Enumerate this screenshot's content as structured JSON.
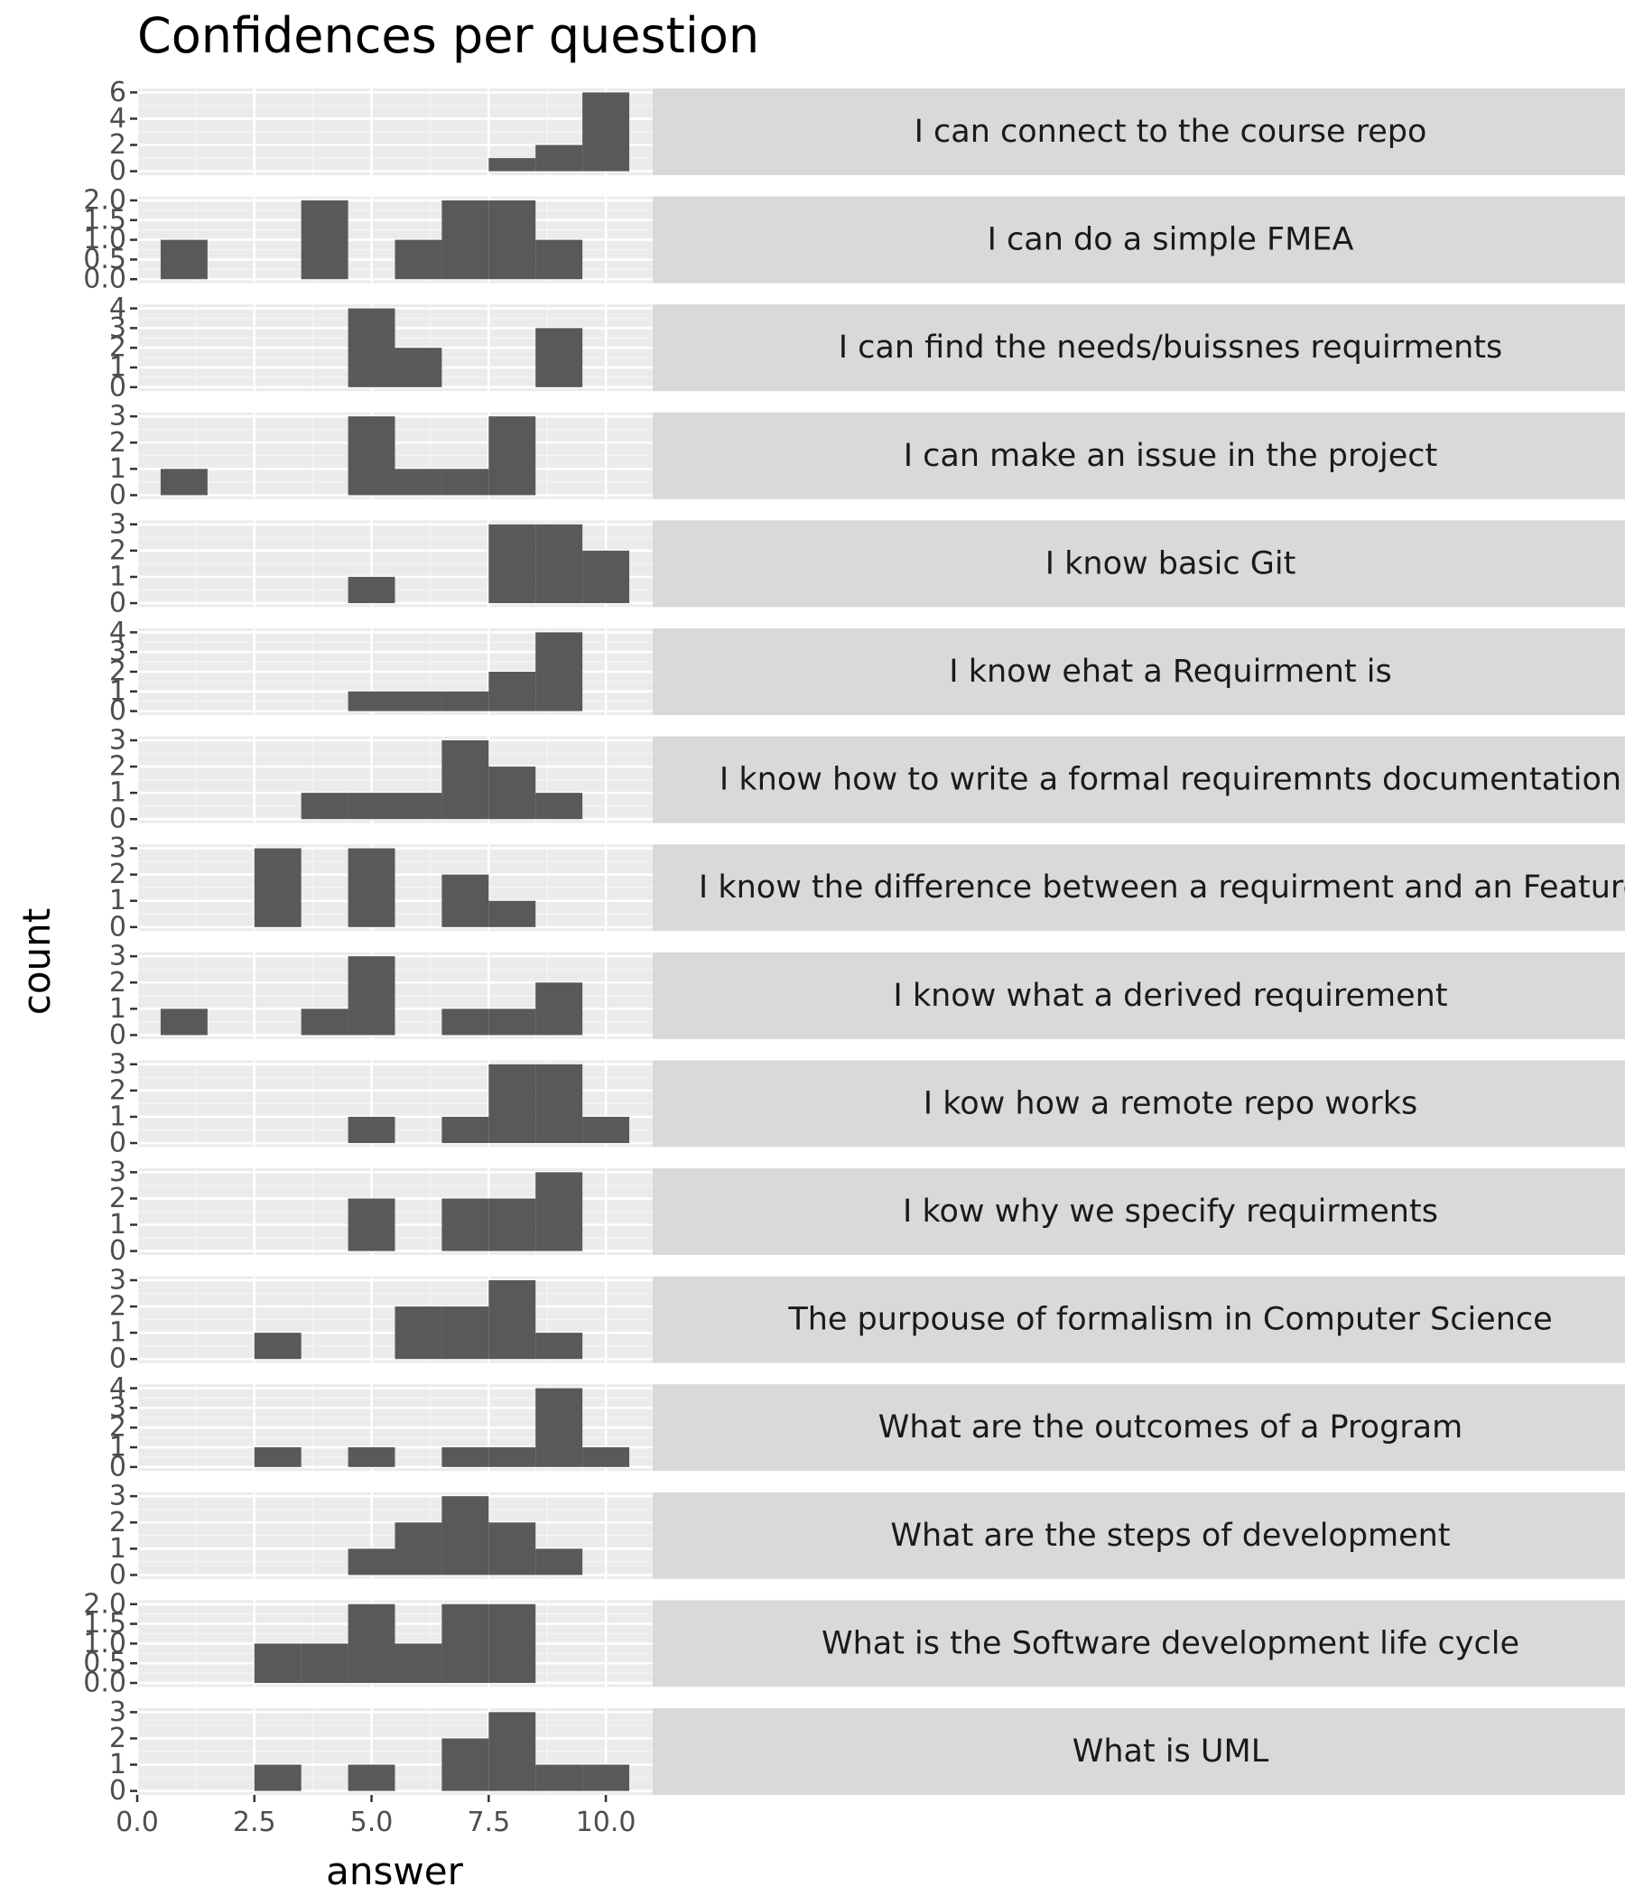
{
  "chart_data": {
    "type": "bar",
    "title": "Confidences per question",
    "xlabel": "answer",
    "ylabel": "count",
    "xlim": [
      0,
      11
    ],
    "x_ticks": [
      0,
      2.5,
      5,
      7.5,
      10
    ],
    "x_tick_labels": [
      "0.0",
      "2.5",
      "5.0",
      "7.5",
      "10.0"
    ],
    "bin_width": 1,
    "bins": [
      1,
      2,
      3,
      4,
      5,
      6,
      7,
      8,
      9,
      10
    ],
    "colors": {
      "bar": "#595959",
      "panel_bg": "#ebebeb",
      "grid_major": "#ffffff",
      "strip_bg": "#d9d9d9",
      "text": "#1a1a1a",
      "tick_text": "#4d4d4d"
    },
    "panels": [
      {
        "label": "I can connect to the course repo",
        "values": [
          0,
          0,
          0,
          0,
          0,
          0,
          0,
          1,
          2,
          6
        ],
        "ylim": [
          0,
          6
        ],
        "y_ticks": [
          0,
          2,
          4,
          6
        ],
        "y_tick_labels": [
          "0",
          "2",
          "4",
          "6"
        ]
      },
      {
        "label": "I can do a simple FMEA",
        "values": [
          1,
          0,
          0,
          2,
          0,
          1,
          2,
          2,
          1,
          0
        ],
        "ylim": [
          0,
          2
        ],
        "y_ticks": [
          0,
          0.5,
          1,
          1.5,
          2
        ],
        "y_tick_labels": [
          "0.0",
          "0.5",
          "1.0",
          "1.5",
          "2.0"
        ]
      },
      {
        "label": "I can find the needs/buissnes requirments",
        "values": [
          0,
          0,
          0,
          0,
          4,
          2,
          0,
          0,
          3,
          0
        ],
        "ylim": [
          0,
          4
        ],
        "y_ticks": [
          0,
          1,
          2,
          3,
          4
        ],
        "y_tick_labels": [
          "0",
          "1",
          "2",
          "3",
          "4"
        ]
      },
      {
        "label": "I can make an issue in the project",
        "values": [
          1,
          0,
          0,
          0,
          3,
          1,
          1,
          3,
          0,
          0
        ],
        "ylim": [
          0,
          3
        ],
        "y_ticks": [
          0,
          1,
          2,
          3
        ],
        "y_tick_labels": [
          "0",
          "1",
          "2",
          "3"
        ]
      },
      {
        "label": "I know basic Git",
        "values": [
          0,
          0,
          0,
          0,
          1,
          0,
          0,
          3,
          3,
          2
        ],
        "ylim": [
          0,
          3
        ],
        "y_ticks": [
          0,
          1,
          2,
          3
        ],
        "y_tick_labels": [
          "0",
          "1",
          "2",
          "3"
        ]
      },
      {
        "label": "I know ehat a Requirment is",
        "values": [
          0,
          0,
          0,
          0,
          1,
          1,
          1,
          2,
          4,
          0
        ],
        "ylim": [
          0,
          4
        ],
        "y_ticks": [
          0,
          1,
          2,
          3,
          4
        ],
        "y_tick_labels": [
          "0",
          "1",
          "2",
          "3",
          "4"
        ]
      },
      {
        "label": "I know how to write a formal requiremnts documentation",
        "values": [
          0,
          0,
          0,
          1,
          1,
          1,
          3,
          2,
          1,
          0
        ],
        "ylim": [
          0,
          3
        ],
        "y_ticks": [
          0,
          1,
          2,
          3
        ],
        "y_tick_labels": [
          "0",
          "1",
          "2",
          "3"
        ]
      },
      {
        "label": "I know the difference between a requirment and an Feature",
        "values": [
          0,
          0,
          3,
          0,
          3,
          0,
          2,
          1,
          0,
          0
        ],
        "ylim": [
          0,
          3
        ],
        "y_ticks": [
          0,
          1,
          2,
          3
        ],
        "y_tick_labels": [
          "0",
          "1",
          "2",
          "3"
        ]
      },
      {
        "label": "I know what a derived requirement",
        "values": [
          1,
          0,
          0,
          1,
          3,
          0,
          1,
          1,
          2,
          0
        ],
        "ylim": [
          0,
          3
        ],
        "y_ticks": [
          0,
          1,
          2,
          3
        ],
        "y_tick_labels": [
          "0",
          "1",
          "2",
          "3"
        ]
      },
      {
        "label": "I kow how a remote repo works",
        "values": [
          0,
          0,
          0,
          0,
          1,
          0,
          1,
          3,
          3,
          1
        ],
        "ylim": [
          0,
          3
        ],
        "y_ticks": [
          0,
          1,
          2,
          3
        ],
        "y_tick_labels": [
          "0",
          "1",
          "2",
          "3"
        ]
      },
      {
        "label": "I kow why we specify requirments",
        "values": [
          0,
          0,
          0,
          0,
          2,
          0,
          2,
          2,
          3,
          0
        ],
        "ylim": [
          0,
          3
        ],
        "y_ticks": [
          0,
          1,
          2,
          3
        ],
        "y_tick_labels": [
          "0",
          "1",
          "2",
          "3"
        ]
      },
      {
        "label": "The purpouse of formalism in Computer Science",
        "values": [
          0,
          0,
          1,
          0,
          0,
          2,
          2,
          3,
          1,
          0
        ],
        "ylim": [
          0,
          3
        ],
        "y_ticks": [
          0,
          1,
          2,
          3
        ],
        "y_tick_labels": [
          "0",
          "1",
          "2",
          "3"
        ]
      },
      {
        "label": "What are the outcomes of a Program",
        "values": [
          0,
          0,
          1,
          0,
          1,
          0,
          1,
          1,
          4,
          1
        ],
        "ylim": [
          0,
          4
        ],
        "y_ticks": [
          0,
          1,
          2,
          3,
          4
        ],
        "y_tick_labels": [
          "0",
          "1",
          "2",
          "3",
          "4"
        ]
      },
      {
        "label": "What are the steps of development",
        "values": [
          0,
          0,
          0,
          0,
          1,
          2,
          3,
          2,
          1,
          0
        ],
        "ylim": [
          0,
          3
        ],
        "y_ticks": [
          0,
          1,
          2,
          3
        ],
        "y_tick_labels": [
          "0",
          "1",
          "2",
          "3"
        ]
      },
      {
        "label": "What is the Software development life cycle",
        "values": [
          0,
          0,
          1,
          1,
          2,
          1,
          2,
          2,
          0,
          0
        ],
        "ylim": [
          0,
          2
        ],
        "y_ticks": [
          0,
          0.5,
          1,
          1.5,
          2
        ],
        "y_tick_labels": [
          "0.0",
          "0.5",
          "1.0",
          "1.5",
          "2.0"
        ]
      },
      {
        "label": "What is UML",
        "values": [
          0,
          0,
          1,
          0,
          1,
          0,
          2,
          3,
          1,
          1
        ],
        "ylim": [
          0,
          3
        ],
        "y_ticks": [
          0,
          1,
          2,
          3
        ],
        "y_tick_labels": [
          "0",
          "1",
          "2",
          "3"
        ]
      }
    ]
  }
}
